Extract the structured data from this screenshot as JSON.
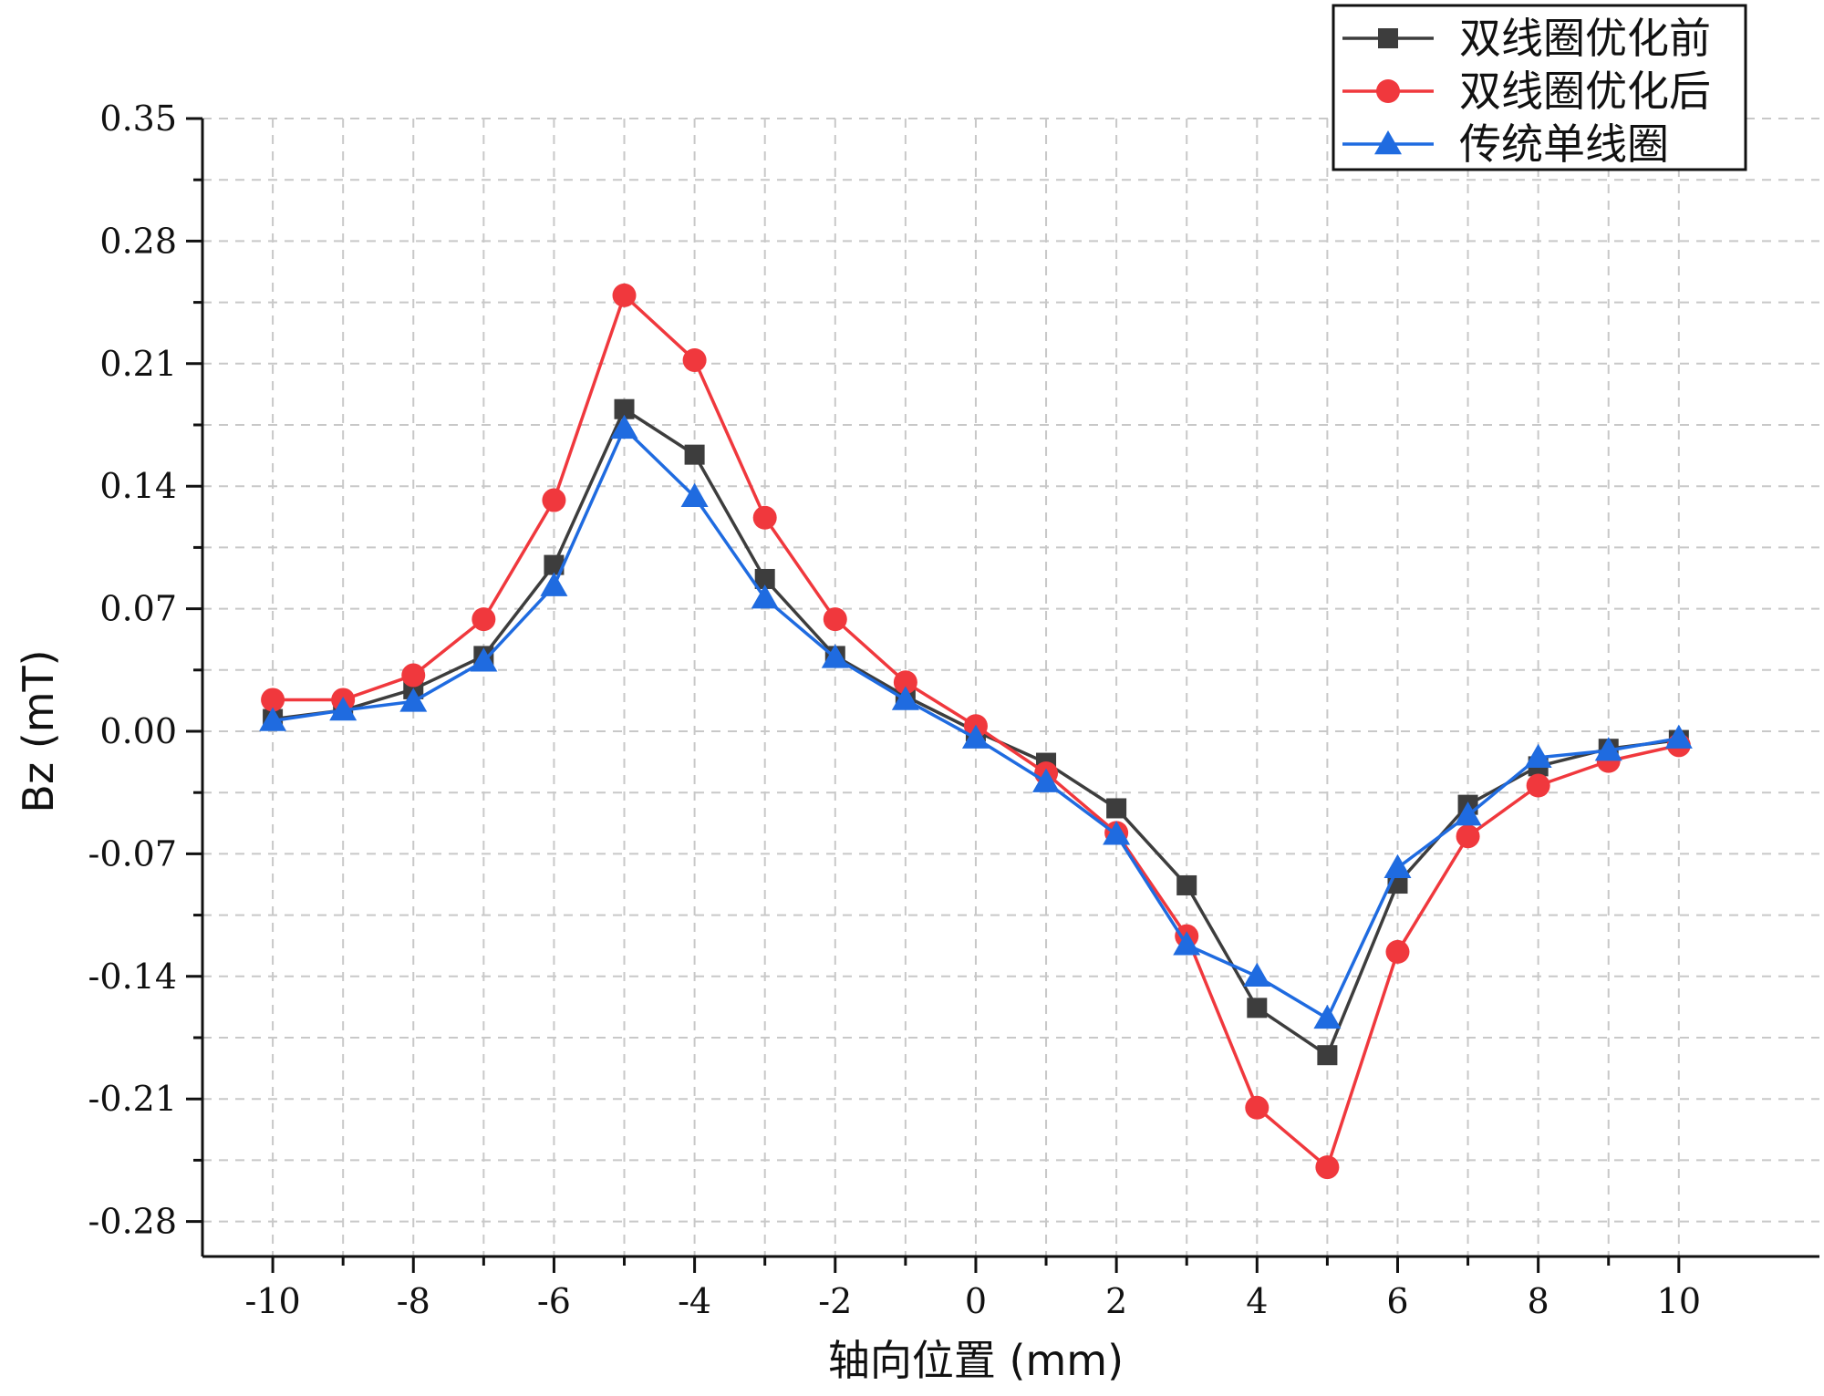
{
  "chart_data": {
    "type": "line",
    "xlabel": "轴向位置 (mm)",
    "ylabel": "Bz (mT)",
    "xlim": [
      -11,
      12
    ],
    "ylim": [
      -0.3,
      0.35
    ],
    "x_ticks": [
      -10,
      -8,
      -6,
      -4,
      -2,
      0,
      2,
      4,
      6,
      8,
      10
    ],
    "x_tick_labels": [
      "-10",
      "-8",
      "-6",
      "-4",
      "-2",
      "0",
      "2",
      "4",
      "6",
      "8",
      "10"
    ],
    "y_ticks": [
      0.35,
      0.28,
      0.21,
      0.14,
      0.07,
      0.0,
      -0.07,
      -0.14,
      -0.21,
      -0.28
    ],
    "y_tick_labels": [
      "0.35",
      "0.28",
      "0.21",
      "0.14",
      "0.07",
      "0.00",
      "-0.07",
      "-0.14",
      "-0.21",
      "-0.28"
    ],
    "grid": true,
    "legend_position": "top-right",
    "x": [
      -10,
      -9,
      -8,
      -7,
      -6,
      -5,
      -4,
      -3,
      -2,
      -1,
      0,
      1,
      2,
      3,
      4,
      5,
      6,
      7,
      8,
      9,
      10
    ],
    "series": [
      {
        "name": "双线圈优化前",
        "color": "#3d3d3d",
        "marker": "square",
        "values": [
          0.007,
          0.012,
          0.024,
          0.043,
          0.095,
          0.184,
          0.158,
          0.087,
          0.043,
          0.02,
          0.0,
          -0.018,
          -0.044,
          -0.088,
          -0.158,
          -0.185,
          -0.087,
          -0.042,
          -0.02,
          -0.01,
          -0.005
        ]
      },
      {
        "name": "双线圈优化后",
        "color": "#f0383d",
        "marker": "circle",
        "values": [
          0.018,
          0.018,
          0.032,
          0.064,
          0.132,
          0.249,
          0.212,
          0.122,
          0.064,
          0.028,
          0.003,
          -0.024,
          -0.058,
          -0.117,
          -0.215,
          -0.249,
          -0.126,
          -0.06,
          -0.031,
          -0.017,
          -0.008
        ]
      },
      {
        "name": "传统单线圈",
        "color": "#1f6be0",
        "marker": "triangle",
        "values": [
          0.006,
          0.012,
          0.017,
          0.04,
          0.083,
          0.173,
          0.134,
          0.076,
          0.042,
          0.018,
          -0.004,
          -0.029,
          -0.059,
          -0.122,
          -0.14,
          -0.164,
          -0.078,
          -0.048,
          -0.015,
          -0.011,
          -0.004
        ]
      }
    ]
  }
}
